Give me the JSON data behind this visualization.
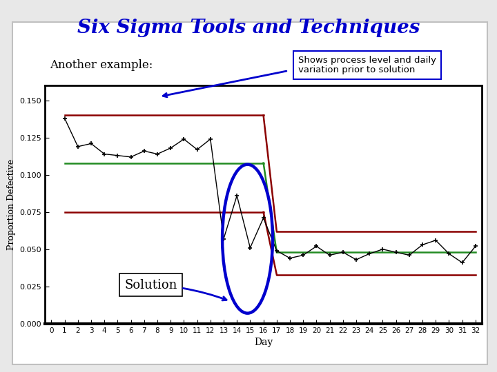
{
  "title": "Six Sigma Tools and Techniques",
  "subtitle": "Another example:",
  "annotation_box": "Shows process level and daily\nvariation prior to solution",
  "solution_label": "Solution",
  "xlabel": "Day",
  "ylabel": "Proportion Defective",
  "bg_color": "#e8e8e8",
  "plot_bg": "#ffffff",
  "outer_box_color": "#c0c0c0",
  "days": [
    1,
    2,
    3,
    4,
    5,
    6,
    7,
    8,
    9,
    10,
    11,
    12,
    13,
    14,
    15,
    16,
    17,
    18,
    19,
    20,
    21,
    22,
    23,
    24,
    25,
    26,
    27,
    28,
    29,
    30,
    31,
    32
  ],
  "values": [
    0.138,
    0.119,
    0.121,
    0.114,
    0.113,
    0.112,
    0.116,
    0.114,
    0.118,
    0.124,
    0.117,
    0.124,
    0.057,
    0.086,
    0.051,
    0.071,
    0.049,
    0.044,
    0.046,
    0.052,
    0.046,
    0.048,
    0.043,
    0.047,
    0.05,
    0.048,
    0.046,
    0.053,
    0.056,
    0.047,
    0.041,
    0.052
  ],
  "ucl1": 0.14,
  "cl1": 0.108,
  "lcl1": 0.075,
  "ucl2": 0.062,
  "cl2": 0.048,
  "lcl2": 0.033,
  "line_color": "#000000",
  "ucl_lcl_color": "#8b0000",
  "cl_color": "#228b22",
  "ellipse_color": "#0000cd",
  "arrow_color": "#0000cd",
  "title_color": "#0000cc",
  "ylim": [
    0.0,
    0.16
  ],
  "yticks": [
    0.0,
    0.025,
    0.05,
    0.075,
    0.1,
    0.125,
    0.15
  ],
  "xticks": [
    0,
    1,
    2,
    3,
    4,
    5,
    6,
    7,
    8,
    9,
    10,
    11,
    12,
    13,
    14,
    15,
    16,
    17,
    18,
    19,
    20,
    21,
    22,
    23,
    24,
    25,
    26,
    27,
    28,
    29,
    30,
    31,
    32
  ]
}
